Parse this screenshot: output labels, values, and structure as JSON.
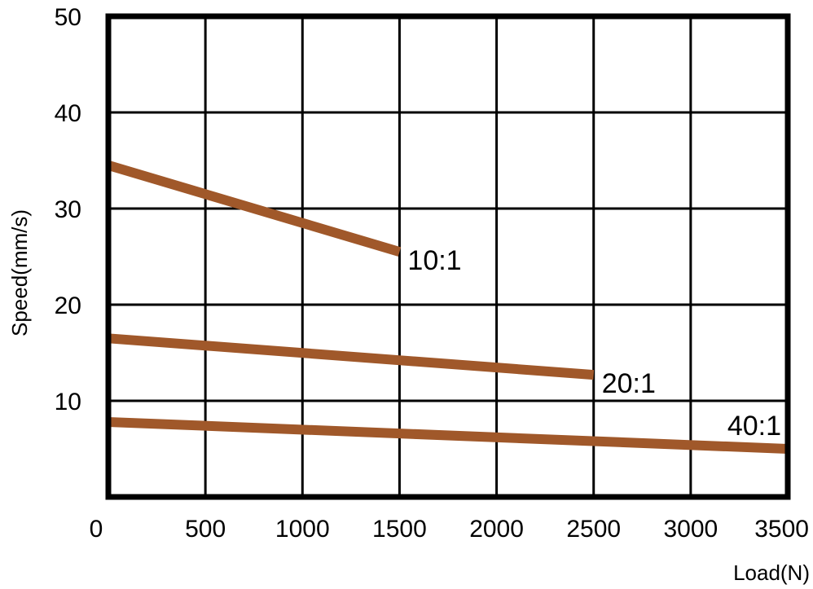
{
  "chart_data": {
    "type": "line",
    "title": "",
    "xlabel": "Load(N)",
    "ylabel": "Speed(mm/s)",
    "xlim": [
      0,
      3500
    ],
    "ylim": [
      0,
      50
    ],
    "x_ticks": [
      0,
      500,
      1000,
      1500,
      2000,
      2500,
      3000,
      3500
    ],
    "y_ticks": [
      10,
      20,
      30,
      40,
      50
    ],
    "x_tick_labels": [
      "0",
      "500",
      "1000",
      "1500",
      "2000",
      "2500",
      "3000",
      "3500"
    ],
    "y_tick_labels": [
      "10",
      "20",
      "30",
      "40",
      "50"
    ],
    "grid": true,
    "legend": "none",
    "series_color": "#a0582a",
    "series": [
      {
        "name": "10:1",
        "x": [
          0,
          1500
        ],
        "y": [
          34.5,
          25.5
        ]
      },
      {
        "name": "20:1",
        "x": [
          0,
          2500
        ],
        "y": [
          16.5,
          12.7
        ]
      },
      {
        "name": "40:1",
        "x": [
          0,
          3500
        ],
        "y": [
          7.8,
          5.0
        ]
      }
    ]
  }
}
